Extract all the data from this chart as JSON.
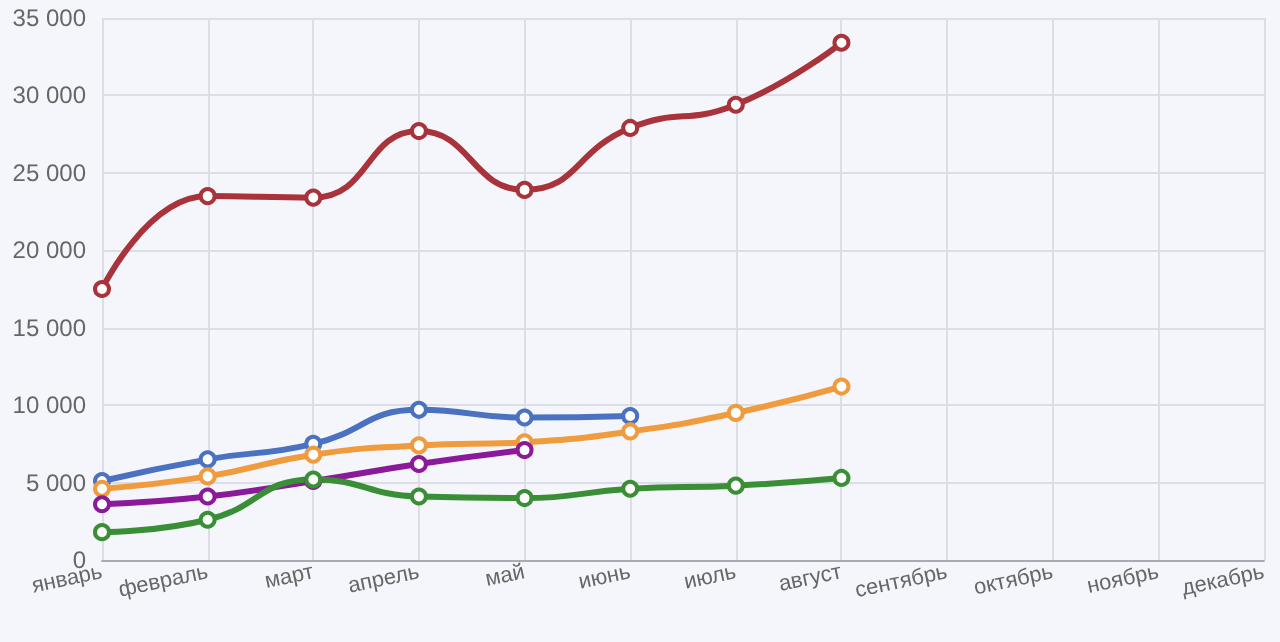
{
  "chart_data": {
    "type": "line",
    "categories": [
      "январь",
      "февраль",
      "март",
      "апрель",
      "май",
      "июнь",
      "июль",
      "август",
      "сентябрь",
      "октябрь",
      "ноябрь",
      "декабрь"
    ],
    "series": [
      {
        "color": "#a8333a",
        "values": [
          17500,
          23500,
          23400,
          27700,
          23900,
          27900,
          29400,
          33400,
          null,
          null,
          null,
          null
        ]
      },
      {
        "color": "#4a72c0",
        "values": [
          5100,
          6500,
          7500,
          9700,
          9200,
          9300,
          null,
          null,
          null,
          null,
          null,
          null
        ]
      },
      {
        "color": "#ef9b3e",
        "values": [
          4600,
          5400,
          6800,
          7400,
          7600,
          8300,
          9500,
          11200,
          null,
          null,
          null,
          null
        ]
      },
      {
        "color": "#8b1a9a",
        "values": [
          3600,
          4100,
          5100,
          6200,
          7100,
          null,
          null,
          null,
          null,
          null,
          null,
          null
        ]
      },
      {
        "color": "#3a8e35",
        "values": [
          1800,
          2600,
          5200,
          4100,
          4000,
          4600,
          4800,
          5300,
          null,
          null,
          null,
          null
        ]
      }
    ],
    "ylim": [
      0,
      35000
    ],
    "yticks": [
      {
        "value": 0,
        "label": "0"
      },
      {
        "value": 5000,
        "label": "5 000"
      },
      {
        "value": 10000,
        "label": "10 000"
      },
      {
        "value": 15000,
        "label": "15 000"
      },
      {
        "value": 20000,
        "label": "20 000"
      },
      {
        "value": 25000,
        "label": "25 000"
      },
      {
        "value": 30000,
        "label": "30 000"
      },
      {
        "value": 35000,
        "label": "35 000"
      }
    ],
    "grid": true,
    "marker": "circle",
    "line_style": "solid"
  }
}
